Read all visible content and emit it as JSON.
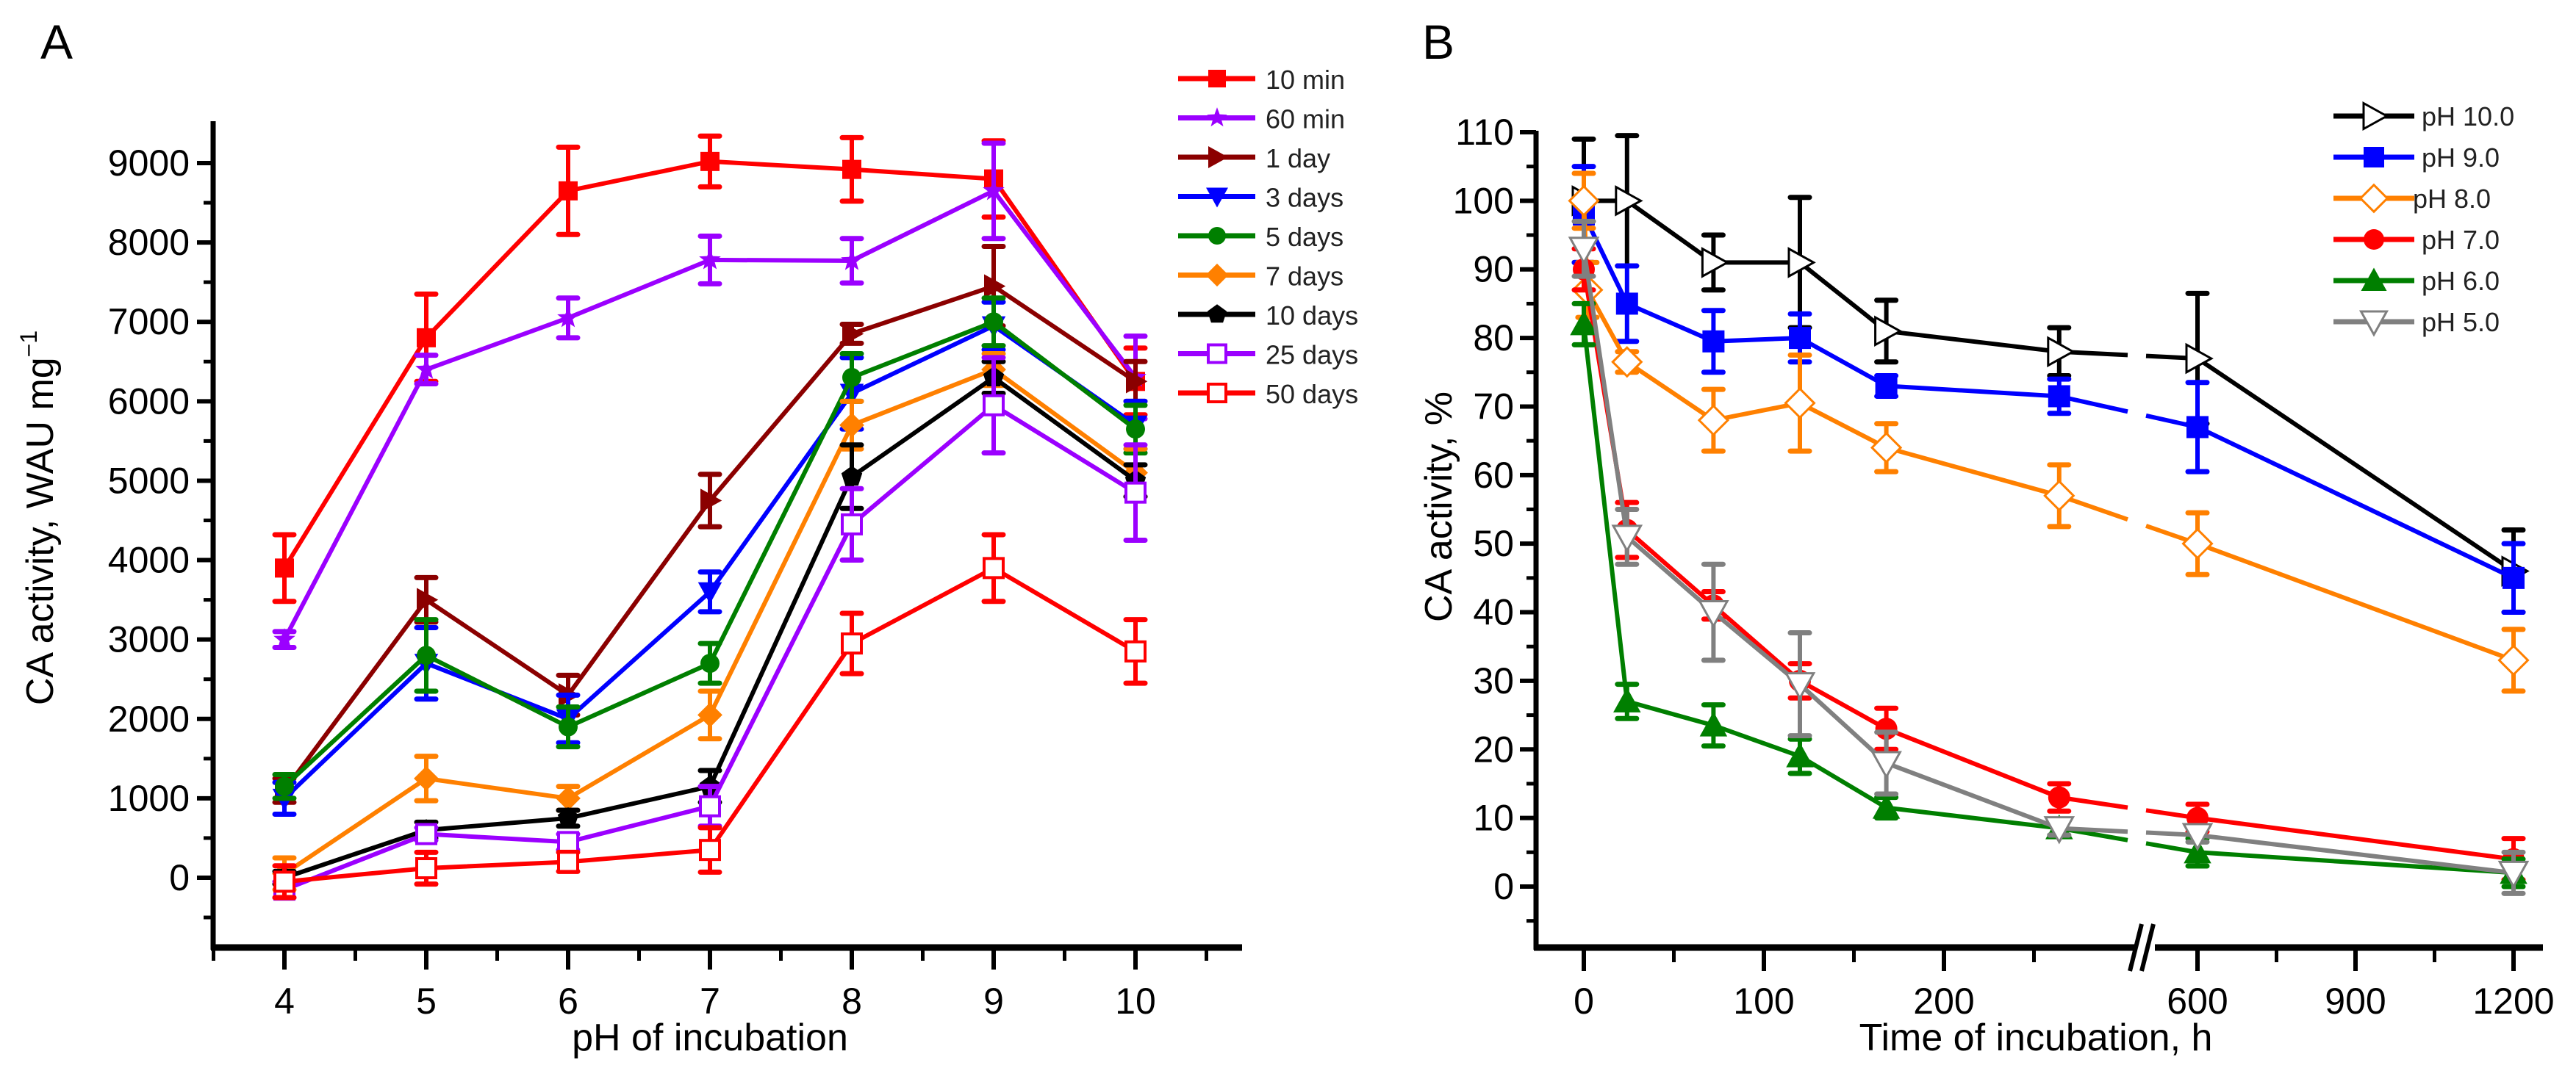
{
  "chart_data": [
    {
      "panel": "A",
      "type": "line",
      "title": "",
      "xlabel": "pH of incubation",
      "ylabel": "CA activity, WAU mg",
      "ylabel_superscript": "−1",
      "x": [
        4,
        5,
        6,
        7,
        8,
        9,
        10
      ],
      "xticks": [
        "4",
        "5",
        "6",
        "7",
        "8",
        "9",
        "10"
      ],
      "xlim": [
        3.55,
        10.6
      ],
      "yticks": [
        "0",
        "1000",
        "2000",
        "3000",
        "4000",
        "5000",
        "6000",
        "7000",
        "8000",
        "9000"
      ],
      "ylim": [
        -500,
        9500
      ],
      "legend_position": "top-right",
      "grid": false,
      "error_bars": true,
      "series": [
        {
          "name": "10 min",
          "color": "#ff0000",
          "marker": "square-filled",
          "values": [
            3900,
            6800,
            8650,
            9020,
            8920,
            8800,
            6250
          ],
          "errors": [
            420,
            550,
            550,
            320,
            400,
            480,
            420
          ]
        },
        {
          "name": "60 min",
          "color": "#9b00ff",
          "marker": "star",
          "values": [
            3000,
            6400,
            7050,
            7780,
            7770,
            8650,
            6300
          ],
          "errors": [
            100,
            180,
            250,
            300,
            280,
            600,
            520
          ]
        },
        {
          "name": "1 day",
          "color": "#8b0000",
          "marker": "triangle-right-filled",
          "values": [
            1100,
            3500,
            2300,
            4750,
            6850,
            7450,
            6250
          ],
          "errors": [
            150,
            280,
            250,
            330,
            120,
            500,
            250
          ]
        },
        {
          "name": "3 days",
          "color": "#0000ff",
          "marker": "triangle-down-filled",
          "values": [
            1000,
            2700,
            2000,
            3600,
            6100,
            6950,
            5700
          ],
          "errors": [
            200,
            450,
            300,
            250,
            450,
            300,
            300
          ]
        },
        {
          "name": "5 days",
          "color": "#007f00",
          "marker": "circle-filled",
          "values": [
            1150,
            2800,
            1900,
            2700,
            6300,
            7000,
            5650
          ],
          "errors": [
            150,
            450,
            250,
            250,
            300,
            300,
            300
          ]
        },
        {
          "name": "7 days",
          "color": "#ff8000",
          "marker": "diamond-filled",
          "values": [
            50,
            1250,
            1000,
            2050,
            5700,
            6400,
            5100
          ],
          "errors": [
            200,
            280,
            150,
            300,
            300,
            200,
            300
          ]
        },
        {
          "name": "10 days",
          "color": "#000000",
          "marker": "pentagon-filled",
          "values": [
            0,
            600,
            750,
            1150,
            5050,
            6300,
            5000
          ],
          "errors": [
            80,
            100,
            100,
            200,
            400,
            200,
            200
          ]
        },
        {
          "name": "25 days",
          "color": "#9b00ff",
          "marker": "square-open",
          "values": [
            -150,
            550,
            450,
            900,
            4450,
            5950,
            4850
          ],
          "errors": [
            100,
            80,
            100,
            250,
            450,
            600,
            600
          ]
        },
        {
          "name": "50 days",
          "color": "#ff0000",
          "marker": "square-open",
          "values": [
            -50,
            120,
            200,
            350,
            2950,
            3900,
            2850
          ],
          "errors": [
            200,
            200,
            120,
            280,
            380,
            420,
            400
          ]
        }
      ]
    },
    {
      "panel": "B",
      "type": "line",
      "title": "",
      "xlabel": "Time of incubation, h",
      "ylabel": "CA activity, %",
      "xticks": [
        "0",
        "100",
        "200",
        "600",
        "900",
        "1200"
      ],
      "xtick_values": [
        0,
        100,
        200,
        600,
        900,
        1200
      ],
      "x_axis_break": [
        275,
        550
      ],
      "segment1_range": [
        -25,
        275
      ],
      "segment2_range": [
        550,
        1210
      ],
      "yticks": [
        "0",
        "10",
        "20",
        "30",
        "40",
        "50",
        "60",
        "70",
        "80",
        "90",
        "100",
        "110"
      ],
      "ylim": [
        -7,
        110
      ],
      "legend_position": "top-right",
      "grid": false,
      "error_bars": true,
      "series": [
        {
          "name": "pH 10.0",
          "color": "#000000",
          "marker": "triangle-right-open",
          "x": [
            0,
            24,
            72,
            120,
            168,
            264,
            600,
            1200
          ],
          "values": [
            100,
            100,
            91,
            91,
            81,
            78,
            77,
            46
          ],
          "errors": [
            9,
            9.5,
            4,
            9.5,
            4.5,
            3.5,
            9.5,
            6
          ]
        },
        {
          "name": "pH 9.0",
          "color": "#0000ff",
          "marker": "square-filled",
          "x": [
            0,
            24,
            72,
            120,
            168,
            264,
            600,
            1200
          ],
          "values": [
            98,
            85,
            79.5,
            80,
            73,
            71.5,
            67,
            45
          ],
          "errors": [
            7,
            5.5,
            4.5,
            3.5,
            1.5,
            2.5,
            6.5,
            5
          ]
        },
        {
          "name": "pH 8.0",
          "color": "#ff8000",
          "marker": "diamond-open",
          "x": [
            0,
            2,
            24,
            72,
            120,
            168,
            264,
            600,
            1200
          ],
          "values": [
            100,
            87,
            76.5,
            68,
            70.5,
            64,
            57,
            50,
            33
          ],
          "errors": [
            4,
            4,
            1.5,
            4.5,
            7,
            3.5,
            4.5,
            4.5,
            4.5
          ]
        },
        {
          "name": "pH 7.0",
          "color": "#ff0000",
          "marker": "circle-filled",
          "x": [
            0,
            24,
            72,
            120,
            168,
            264,
            600,
            1200
          ],
          "values": [
            90,
            52,
            41,
            30,
            23,
            13,
            10,
            4
          ],
          "errors": [
            3,
            4,
            2,
            2.5,
            3,
            2,
            2,
            3
          ]
        },
        {
          "name": "pH 6.0",
          "color": "#007f00",
          "marker": "triangle-up-filled",
          "x": [
            0,
            24,
            72,
            120,
            168,
            264,
            600,
            1200
          ],
          "values": [
            82,
            27,
            23.5,
            19,
            11.5,
            8.5,
            5,
            2
          ],
          "errors": [
            3,
            2.5,
            3,
            2.5,
            1.5,
            1,
            2,
            2
          ]
        },
        {
          "name": "pH 5.0",
          "color": "#808080",
          "marker": "triangle-down-open",
          "x": [
            0,
            24,
            72,
            120,
            168,
            264,
            600,
            1200
          ],
          "values": [
            93,
            51,
            40,
            29.5,
            18,
            8.5,
            7.5,
            2
          ],
          "errors": [
            4,
            4,
            7,
            7.5,
            4.5,
            1,
            1,
            3
          ]
        }
      ]
    }
  ]
}
